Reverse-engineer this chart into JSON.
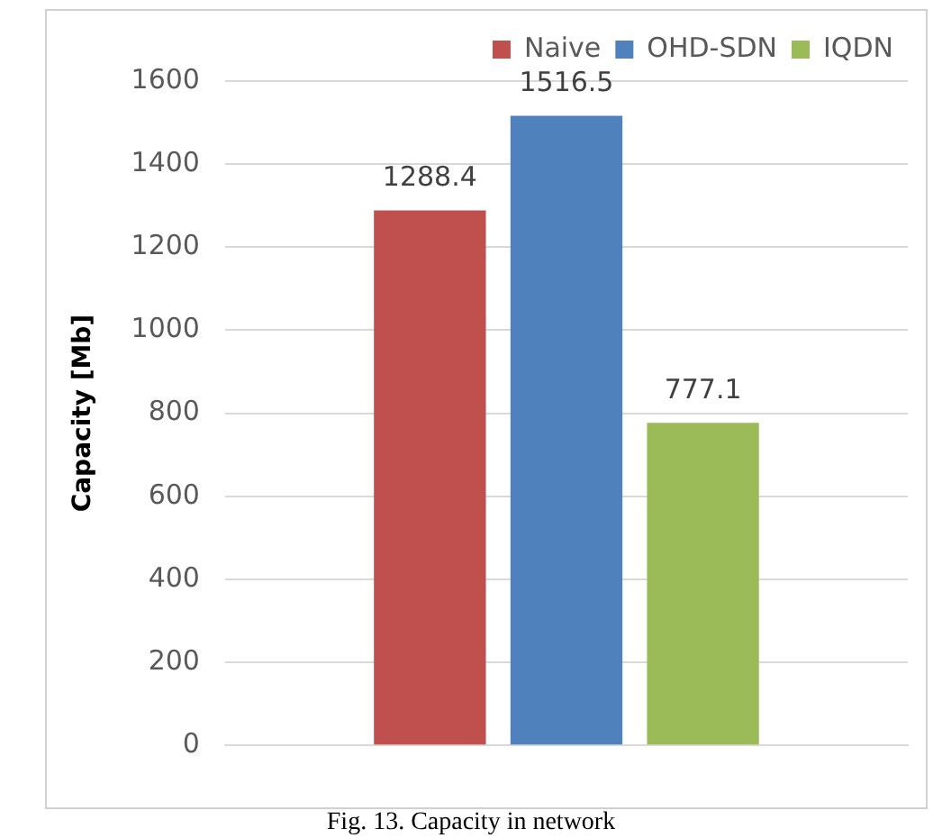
{
  "chart_data": {
    "type": "bar",
    "ylabel": "Capacity [Mb]",
    "categories": [
      null
    ],
    "series": [
      {
        "name": "Naive",
        "color": "#c0504d",
        "values": [
          1288.4
        ]
      },
      {
        "name": "OHD-SDN",
        "color": "#4f81bd",
        "values": [
          1516.5
        ]
      },
      {
        "name": "IQDN",
        "color": "#9bbb59",
        "values": [
          777.1
        ]
      }
    ],
    "ylim": [
      0,
      1600
    ],
    "yticks": [
      0,
      200,
      400,
      600,
      800,
      1000,
      1200,
      1400,
      1600
    ],
    "grid": "y",
    "legend": "top",
    "data_labels": true,
    "annotations": [
      "Fig. 13. Capacity in network"
    ]
  }
}
